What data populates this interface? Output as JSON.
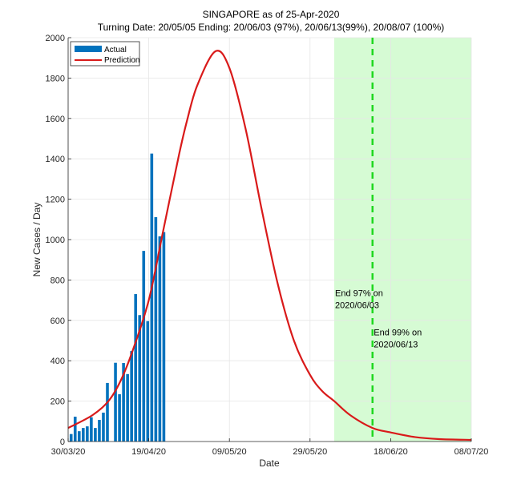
{
  "chart_data": {
    "type": "bar",
    "title": "SINGAPORE as of 25-Apr-2020",
    "subtitle": "Turning Date: 20/05/05  Ending: 20/06/03 (97%), 20/06/13(99%), 20/08/07 (100%)",
    "xlabel": "Date",
    "ylabel": "New Cases / Day",
    "ylim": [
      0,
      2000
    ],
    "xlim_days": [
      0,
      100
    ],
    "x_origin_date": "30/03/20",
    "grid": true,
    "yticks": [
      0,
      200,
      400,
      600,
      800,
      1000,
      1200,
      1400,
      1600,
      1800,
      2000
    ],
    "xticks": [
      {
        "day": 0,
        "label": "30/03/20"
      },
      {
        "day": 20,
        "label": "19/04/20"
      },
      {
        "day": 40,
        "label": "09/05/20"
      },
      {
        "day": 60,
        "label": "29/05/20"
      },
      {
        "day": 80,
        "label": "18/06/20"
      },
      {
        "day": 100,
        "label": "08/07/20"
      }
    ],
    "legend": {
      "placement": "top-left",
      "entries": [
        {
          "label": "Actual",
          "type": "bar",
          "color": "#0072bd"
        },
        {
          "label": "Prediction",
          "type": "line",
          "color": "#d91a1a"
        }
      ]
    },
    "series": [
      {
        "name": "Actual",
        "type": "bar",
        "color": "#0072bd",
        "days": [
          1,
          2,
          3,
          4,
          5,
          6,
          7,
          8,
          9,
          10,
          12,
          13,
          14,
          15,
          16,
          17,
          18,
          19,
          20,
          21,
          22,
          23,
          24
        ],
        "values": [
          37,
          123,
          51,
          67,
          75,
          120,
          67,
          107,
          143,
          290,
          390,
          234,
          389,
          334,
          448,
          730,
          626,
          944,
          596,
          1426,
          1111,
          1016,
          1037
        ]
      },
      {
        "name": "Prediction",
        "type": "line",
        "color": "#d91a1a",
        "days": [
          0,
          6,
          10,
          13,
          16,
          20,
          23.5,
          27.5,
          29.5,
          32,
          36.5,
          40,
          44,
          48,
          52,
          56,
          60,
          63,
          66,
          70,
          75.5,
          80,
          86,
          92,
          100
        ],
        "values": [
          67,
          130,
          200,
          300,
          450,
          700,
          1036,
          1420,
          1590,
          1762,
          1932,
          1850,
          1550,
          1150,
          780,
          500,
          330,
          250,
          200,
          130,
          67,
          45,
          22,
          12,
          8
        ]
      }
    ],
    "shaded_region": {
      "from_day": 66,
      "to_day": 100,
      "color": "#d6fbd4"
    },
    "vertical_line": {
      "day": 75.5,
      "color": "#1fd81f",
      "style": "dashed"
    },
    "annotations": [
      {
        "day": 66.2,
        "value": 720,
        "lines": [
          "End 97% on",
          "2020/06/03"
        ]
      },
      {
        "day": 75.8,
        "value": 525,
        "lines": [
          "End 99% on",
          "2020/06/13"
        ]
      }
    ]
  }
}
